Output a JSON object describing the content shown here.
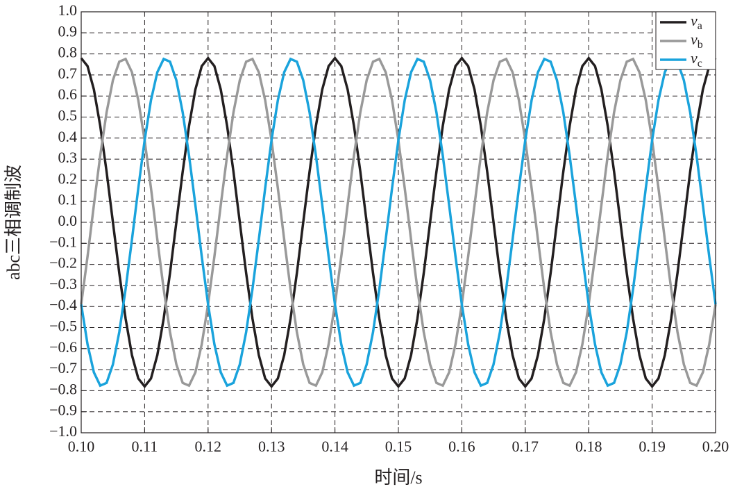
{
  "chart_data": {
    "type": "line",
    "xlabel": "时间/s",
    "ylabel": "abc三相调制波",
    "x": [
      0.1,
      0.101,
      0.102,
      0.103,
      0.104,
      0.105,
      0.106,
      0.107,
      0.108,
      0.109,
      0.11,
      0.111,
      0.112,
      0.113,
      0.114,
      0.115,
      0.116,
      0.117,
      0.118,
      0.119,
      0.12,
      0.121,
      0.122,
      0.123,
      0.124,
      0.125,
      0.126,
      0.127,
      0.128,
      0.129,
      0.13,
      0.131,
      0.132,
      0.133,
      0.134,
      0.135,
      0.136,
      0.137,
      0.138,
      0.139,
      0.14,
      0.141,
      0.142,
      0.143,
      0.144,
      0.145,
      0.146,
      0.147,
      0.148,
      0.149,
      0.15,
      0.151,
      0.152,
      0.153,
      0.154,
      0.155,
      0.156,
      0.157,
      0.158,
      0.159,
      0.16,
      0.161,
      0.162,
      0.163,
      0.164,
      0.165,
      0.166,
      0.167,
      0.168,
      0.169,
      0.17,
      0.171,
      0.172,
      0.173,
      0.174,
      0.175,
      0.176,
      0.177,
      0.178,
      0.179,
      0.18,
      0.181,
      0.182,
      0.183,
      0.184,
      0.185,
      0.186,
      0.187,
      0.188,
      0.189,
      0.19,
      0.191,
      0.192,
      0.193,
      0.194,
      0.195,
      0.196,
      0.197,
      0.198,
      0.199,
      0.2
    ],
    "series": [
      {
        "name": "va",
        "color": "#231f20",
        "values": [
          0.78,
          0.742,
          0.631,
          0.458,
          0.241,
          0,
          -0.241,
          -0.458,
          -0.631,
          -0.742,
          -0.78,
          -0.742,
          -0.631,
          -0.458,
          -0.241,
          0,
          0.241,
          0.458,
          0.631,
          0.742,
          0.78,
          0.742,
          0.631,
          0.458,
          0.241,
          0,
          -0.241,
          -0.458,
          -0.631,
          -0.742,
          -0.78,
          -0.742,
          -0.631,
          -0.458,
          -0.241,
          0,
          0.241,
          0.458,
          0.631,
          0.742,
          0.78,
          0.742,
          0.631,
          0.458,
          0.241,
          0,
          -0.241,
          -0.458,
          -0.631,
          -0.742,
          -0.78,
          -0.742,
          -0.631,
          -0.458,
          -0.241,
          0,
          0.241,
          0.458,
          0.631,
          0.742,
          0.78,
          0.742,
          0.631,
          0.458,
          0.241,
          0,
          -0.241,
          -0.458,
          -0.631,
          -0.742,
          -0.78,
          -0.742,
          -0.631,
          -0.458,
          -0.241,
          0,
          0.241,
          0.458,
          0.631,
          0.742,
          0.78,
          0.742,
          0.631,
          0.458,
          0.241,
          0,
          -0.241,
          -0.458,
          -0.631,
          -0.742,
          -0.78,
          -0.742,
          -0.631,
          -0.458,
          -0.241,
          0,
          0.241,
          0.458,
          0.631,
          0.742,
          0.78
        ]
      },
      {
        "name": "vb",
        "color": "#999999",
        "values": [
          -0.39,
          -0.162,
          0.082,
          0.317,
          0.522,
          0.675,
          0.763,
          0.776,
          0.713,
          0.58,
          0.39,
          0.162,
          -0.082,
          -0.317,
          -0.522,
          -0.675,
          -0.763,
          -0.776,
          -0.713,
          -0.58,
          -0.39,
          -0.162,
          0.082,
          0.317,
          0.522,
          0.675,
          0.763,
          0.776,
          0.713,
          0.58,
          0.39,
          0.162,
          -0.082,
          -0.317,
          -0.522,
          -0.675,
          -0.763,
          -0.776,
          -0.713,
          -0.58,
          -0.39,
          -0.162,
          0.082,
          0.317,
          0.522,
          0.675,
          0.763,
          0.776,
          0.713,
          0.58,
          0.39,
          0.162,
          -0.082,
          -0.317,
          -0.522,
          -0.675,
          -0.763,
          -0.776,
          -0.713,
          -0.58,
          -0.39,
          -0.162,
          0.082,
          0.317,
          0.522,
          0.675,
          0.763,
          0.776,
          0.713,
          0.58,
          0.39,
          0.162,
          -0.082,
          -0.317,
          -0.522,
          -0.675,
          -0.763,
          -0.776,
          -0.713,
          -0.58,
          -0.39,
          -0.162,
          0.082,
          0.317,
          0.522,
          0.675,
          0.763,
          0.776,
          0.713,
          0.58,
          0.39,
          0.162,
          -0.082,
          -0.317,
          -0.522,
          -0.675,
          -0.763,
          -0.776,
          -0.713,
          -0.58,
          -0.39
        ]
      },
      {
        "name": "vc",
        "color": "#1aa3dc",
        "values": [
          -0.39,
          -0.58,
          -0.713,
          -0.776,
          -0.763,
          -0.675,
          -0.522,
          -0.317,
          -0.082,
          0.162,
          0.39,
          0.58,
          0.713,
          0.776,
          0.763,
          0.675,
          0.522,
          0.317,
          0.082,
          -0.162,
          -0.39,
          -0.58,
          -0.713,
          -0.776,
          -0.763,
          -0.675,
          -0.522,
          -0.317,
          -0.082,
          0.162,
          0.39,
          0.58,
          0.713,
          0.776,
          0.763,
          0.675,
          0.522,
          0.317,
          0.082,
          -0.162,
          -0.39,
          -0.58,
          -0.713,
          -0.776,
          -0.763,
          -0.675,
          -0.522,
          -0.317,
          -0.082,
          0.162,
          0.39,
          0.58,
          0.713,
          0.776,
          0.763,
          0.675,
          0.522,
          0.317,
          0.082,
          -0.162,
          -0.39,
          -0.58,
          -0.713,
          -0.776,
          -0.763,
          -0.675,
          -0.522,
          -0.317,
          -0.082,
          0.162,
          0.39,
          0.58,
          0.713,
          0.776,
          0.763,
          0.675,
          0.522,
          0.317,
          0.082,
          -0.162,
          -0.39,
          -0.58,
          -0.713,
          -0.776,
          -0.763,
          -0.675,
          -0.522,
          -0.317,
          -0.082,
          0.162,
          0.39,
          0.58,
          0.713,
          0.776,
          0.763,
          0.675,
          0.522,
          0.317,
          0.082,
          -0.162,
          -0.39
        ]
      }
    ],
    "xlim": [
      0.1,
      0.2
    ],
    "xticks": [
      {
        "value": 0.1,
        "label": "0.10"
      },
      0.11,
      0.12,
      0.13,
      0.14,
      0.15,
      0.16,
      0.17,
      0.18,
      0.19,
      {
        "value": 0.2,
        "label": "0.20"
      }
    ],
    "ylim": [
      -1,
      1
    ],
    "yticks": [
      {
        "value": -1,
        "label": "−1.0"
      },
      {
        "value": -0.9,
        "label": "−0.9"
      },
      {
        "value": -0.8,
        "label": "−0.8"
      },
      {
        "value": -0.7,
        "label": "−0.7"
      },
      {
        "value": -0.6,
        "label": "−0.6"
      },
      {
        "value": -0.5,
        "label": "−0.5"
      },
      {
        "value": -0.4,
        "label": "−0.4"
      },
      {
        "value": -0.3,
        "label": "−0.3"
      },
      {
        "value": -0.2,
        "label": "−0.2"
      },
      {
        "value": -0.1,
        "label": "−0.1"
      },
      {
        "value": 0,
        "label": "0.0"
      },
      0.1,
      0.2,
      0.3,
      0.4,
      0.5,
      0.6,
      0.7,
      0.8,
      0.9,
      {
        "value": 1,
        "label": "1.0"
      }
    ],
    "grid": true,
    "legend": "upper right"
  }
}
